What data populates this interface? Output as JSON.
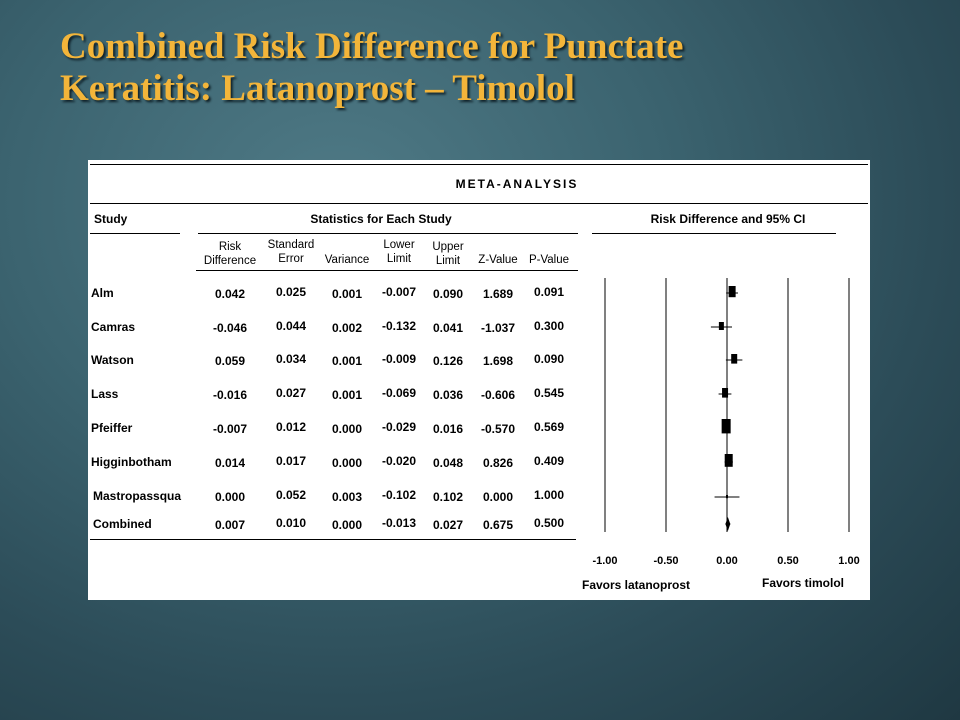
{
  "title": [
    "Combined Risk Difference for Punctate",
    "Keratitis: Latanoprost – Timolol"
  ],
  "table": {
    "section_title": "META-ANALYSIS",
    "study_header": "Study",
    "stats_header": "Statistics for Each Study",
    "ci_header": "Risk Difference and 95% CI",
    "columns": [
      [
        "Risk",
        "Difference"
      ],
      [
        "Standard",
        "Error"
      ],
      [
        "Variance"
      ],
      [
        "Lower",
        "Limit"
      ],
      [
        "Upper",
        "Limit"
      ],
      [
        "Z-Value"
      ],
      [
        "P-Value"
      ]
    ],
    "rows": [
      {
        "study": "Alm",
        "values": [
          "0.042",
          "0.025",
          "0.001",
          "-0.007",
          "0.090",
          "1.689",
          "0.091"
        ]
      },
      {
        "study": "Camras",
        "values": [
          "-0.046",
          "0.044",
          "0.002",
          "-0.132",
          "0.041",
          "-1.037",
          "0.300"
        ]
      },
      {
        "study": "Watson",
        "values": [
          "0.059",
          "0.034",
          "0.001",
          "-0.009",
          "0.126",
          "1.698",
          "0.090"
        ]
      },
      {
        "study": "Lass",
        "values": [
          "-0.016",
          "0.027",
          "0.001",
          "-0.069",
          "0.036",
          "-0.606",
          "0.545"
        ]
      },
      {
        "study": "Pfeiffer",
        "values": [
          "-0.007",
          "0.012",
          "0.000",
          "-0.029",
          "0.016",
          "-0.570",
          "0.569"
        ]
      },
      {
        "study": "Higginbotham",
        "values": [
          "0.014",
          "0.017",
          "0.000",
          "-0.020",
          "0.048",
          "0.826",
          "0.409"
        ]
      },
      {
        "study": "Mastropassqua",
        "values": [
          "0.000",
          "0.052",
          "0.003",
          "-0.102",
          "0.102",
          "0.000",
          "1.000"
        ]
      },
      {
        "study": "Combined",
        "values": [
          "0.007",
          "0.010",
          "0.000",
          "-0.013",
          "0.027",
          "0.675",
          "0.500"
        ]
      }
    ]
  },
  "chart_data": {
    "type": "scatter",
    "subtype": "forest-plot",
    "title": "Risk Difference and 95% CI",
    "x_ticks": [
      -1.0,
      -0.5,
      0.0,
      0.5,
      1.0
    ],
    "x_tick_labels": [
      "-1.00",
      "-0.50",
      "0.00",
      "0.50",
      "1.00"
    ],
    "xlim": [
      -1.0,
      1.0
    ],
    "xlabel_left": "Favors latanoprost",
    "xlabel_right": "Favors timolol",
    "grid": true,
    "points": [
      {
        "study": "Alm",
        "rd": 0.042,
        "lower": -0.007,
        "upper": 0.09,
        "marker": "square"
      },
      {
        "study": "Camras",
        "rd": -0.046,
        "lower": -0.132,
        "upper": 0.041,
        "marker": "square"
      },
      {
        "study": "Watson",
        "rd": 0.059,
        "lower": -0.009,
        "upper": 0.126,
        "marker": "square"
      },
      {
        "study": "Lass",
        "rd": -0.016,
        "lower": -0.069,
        "upper": 0.036,
        "marker": "square"
      },
      {
        "study": "Pfeiffer",
        "rd": -0.007,
        "lower": -0.029,
        "upper": 0.016,
        "marker": "square"
      },
      {
        "study": "Higginbotham",
        "rd": 0.014,
        "lower": -0.02,
        "upper": 0.048,
        "marker": "square"
      },
      {
        "study": "Mastropassqua",
        "rd": 0.0,
        "lower": -0.102,
        "upper": 0.102,
        "marker": "square"
      },
      {
        "study": "Combined",
        "rd": 0.007,
        "lower": -0.013,
        "upper": 0.027,
        "marker": "diamond"
      }
    ]
  }
}
